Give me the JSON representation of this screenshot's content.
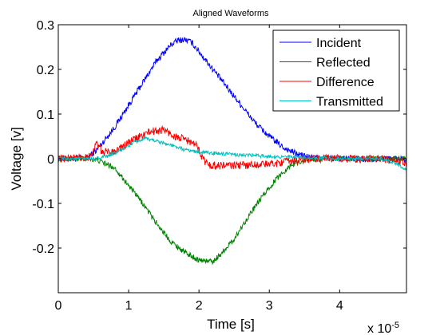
{
  "chart_data": {
    "type": "line",
    "title": "Aligned Waveforms",
    "xlabel": "Time [s]",
    "ylabel": "Voltage [v]",
    "x_multiplier_label": "x 10",
    "x_multiplier_exponent": "-5",
    "xlim": [
      0,
      4.95
    ],
    "ylim": [
      -0.3,
      0.3
    ],
    "x_ticks": [
      0,
      1,
      2,
      3,
      4
    ],
    "x_tick_labels": [
      "0",
      "1",
      "2",
      "3",
      "4"
    ],
    "y_ticks": [
      0.3,
      0.2,
      0.1,
      0,
      -0.1,
      -0.2
    ],
    "y_tick_labels": [
      "0.3",
      "0.2",
      "0.1",
      "0",
      "-0.1",
      "-0.2"
    ],
    "grid": false,
    "legend_position": "top-right",
    "x_unit_scale": "1e-5",
    "series": [
      {
        "name": "Incident",
        "color": "#0000ff",
        "noise": 0.007,
        "points": [
          [
            0,
            0
          ],
          [
            0.4,
            0
          ],
          [
            0.55,
            0.02
          ],
          [
            0.7,
            0.05
          ],
          [
            0.8,
            0.07
          ],
          [
            1.0,
            0.12
          ],
          [
            1.2,
            0.17
          ],
          [
            1.4,
            0.22
          ],
          [
            1.6,
            0.255
          ],
          [
            1.7,
            0.265
          ],
          [
            1.8,
            0.267
          ],
          [
            1.9,
            0.26
          ],
          [
            2.0,
            0.24
          ],
          [
            2.2,
            0.2
          ],
          [
            2.4,
            0.16
          ],
          [
            2.6,
            0.12
          ],
          [
            2.8,
            0.08
          ],
          [
            3.0,
            0.05
          ],
          [
            3.2,
            0.025
          ],
          [
            3.4,
            0.01
          ],
          [
            3.6,
            0.003
          ],
          [
            4.0,
            0
          ],
          [
            4.6,
            0
          ],
          [
            4.95,
            0
          ]
        ]
      },
      {
        "name": "Reflected",
        "color": "#008000",
        "noise": 0.006,
        "points": [
          [
            0,
            0
          ],
          [
            0.45,
            0
          ],
          [
            0.55,
            -0.003
          ],
          [
            0.8,
            -0.02
          ],
          [
            1.0,
            -0.06
          ],
          [
            1.2,
            -0.1
          ],
          [
            1.4,
            -0.145
          ],
          [
            1.6,
            -0.185
          ],
          [
            1.8,
            -0.21
          ],
          [
            2.0,
            -0.227
          ],
          [
            2.2,
            -0.23
          ],
          [
            2.3,
            -0.215
          ],
          [
            2.5,
            -0.18
          ],
          [
            2.7,
            -0.13
          ],
          [
            2.9,
            -0.085
          ],
          [
            3.1,
            -0.045
          ],
          [
            3.3,
            -0.015
          ],
          [
            3.5,
            -0.003
          ],
          [
            3.8,
            0
          ],
          [
            4.6,
            0
          ],
          [
            4.95,
            0
          ]
        ]
      },
      {
        "name": "Difference",
        "color": "#ff0000",
        "noise": 0.009,
        "points": [
          [
            0,
            0
          ],
          [
            0.45,
            0.005
          ],
          [
            0.55,
            0.035
          ],
          [
            0.62,
            0.015
          ],
          [
            0.75,
            0.015
          ],
          [
            0.9,
            0.025
          ],
          [
            1.1,
            0.045
          ],
          [
            1.3,
            0.06
          ],
          [
            1.5,
            0.065
          ],
          [
            1.65,
            0.05
          ],
          [
            1.85,
            0.04
          ],
          [
            2.0,
            0.025
          ],
          [
            2.05,
            0
          ],
          [
            2.15,
            -0.015
          ],
          [
            2.5,
            -0.015
          ],
          [
            3.0,
            -0.012
          ],
          [
            3.3,
            -0.005
          ],
          [
            3.6,
            0
          ],
          [
            4.6,
            0
          ],
          [
            4.9,
            -0.005
          ],
          [
            4.95,
            -0.01
          ]
        ]
      },
      {
        "name": "Transmitted",
        "color": "#00bfbf",
        "noise": 0.004,
        "points": [
          [
            0,
            0
          ],
          [
            0.5,
            0
          ],
          [
            0.7,
            0.005
          ],
          [
            0.9,
            0.02
          ],
          [
            1.1,
            0.038
          ],
          [
            1.25,
            0.045
          ],
          [
            1.4,
            0.04
          ],
          [
            1.6,
            0.03
          ],
          [
            1.8,
            0.02
          ],
          [
            2.0,
            0.015
          ],
          [
            2.4,
            0.01
          ],
          [
            2.8,
            0.007
          ],
          [
            3.2,
            0.004
          ],
          [
            3.6,
            0.002
          ],
          [
            4.0,
            0
          ],
          [
            4.6,
            0
          ],
          [
            4.8,
            -0.01
          ],
          [
            4.95,
            -0.025
          ]
        ]
      }
    ]
  }
}
